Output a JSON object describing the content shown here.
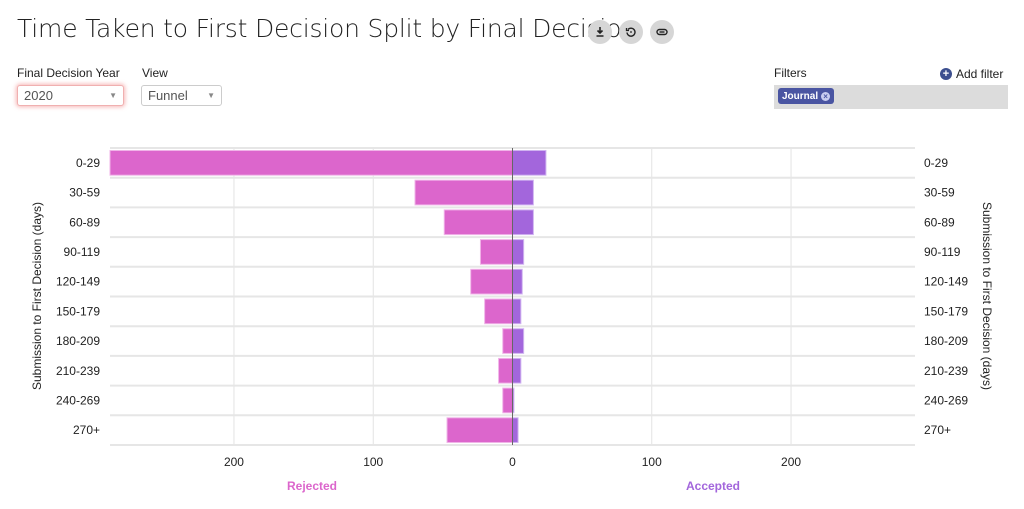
{
  "header": {
    "title": "Time Taken to First Decision Split by Final Decision",
    "icons": [
      "download-icon",
      "reset-icon",
      "link-icon"
    ]
  },
  "controls": {
    "year_label": "Final Decision Year",
    "year_value": "2020",
    "view_label": "View",
    "view_value": "Funnel",
    "filters_label": "Filters",
    "add_filter_label": "Add filter",
    "filter_chips": [
      "Journal"
    ]
  },
  "colors": {
    "rejected": "#dc66cc",
    "accepted": "#a366dc",
    "chip": "#4a55a2"
  },
  "chart_data": {
    "type": "bar",
    "orientation": "horizontal-diverging",
    "title": "Time Taken to First Decision Split by Final Decision",
    "categories": [
      "0-29",
      "30-59",
      "60-89",
      "90-119",
      "120-149",
      "150-179",
      "180-209",
      "210-239",
      "240-269",
      "270+"
    ],
    "series": [
      {
        "name": "Rejected",
        "values": [
          289,
          70,
          49,
          23,
          30,
          20,
          7,
          10,
          7,
          47
        ]
      },
      {
        "name": "Accepted",
        "values": [
          24,
          15,
          15,
          8,
          7,
          6,
          8,
          6,
          1,
          4
        ]
      }
    ],
    "ylabel": "Submission to First Decision (days)",
    "xlabel_left": "Rejected",
    "xlabel_right": "Accepted",
    "xlim": [
      -289,
      289
    ],
    "xticks": [
      -200,
      -100,
      0,
      100,
      200
    ],
    "xtick_labels": [
      "200",
      "100",
      "0",
      "100",
      "200"
    ],
    "grid": true
  }
}
